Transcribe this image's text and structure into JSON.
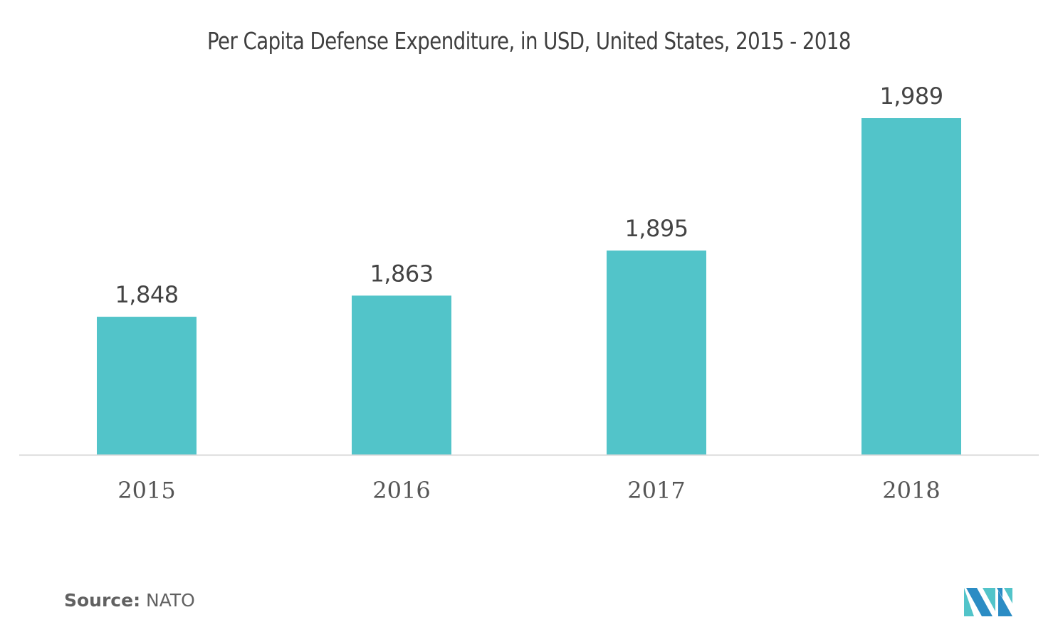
{
  "chart_data": {
    "type": "bar",
    "title": "Per Capita Defense Expenditure, in USD, United States, 2015 - 2018",
    "categories": [
      "2015",
      "2016",
      "2017",
      "2018"
    ],
    "values": [
      1848,
      1863,
      1895,
      1989
    ],
    "value_labels": [
      "1,848",
      "1,863",
      "1,895",
      "1,989"
    ],
    "xlabel": "",
    "ylabel": "",
    "ylim": [
      1750,
      2010
    ],
    "grid": false,
    "legend": "none",
    "bar_color": "#52c4c9"
  },
  "source": {
    "label": "Source:",
    "value": "NATO"
  },
  "logo": {
    "name": "mordor-intelligence-logo",
    "colors": [
      "#2b8cc4",
      "#52c4c9"
    ]
  }
}
